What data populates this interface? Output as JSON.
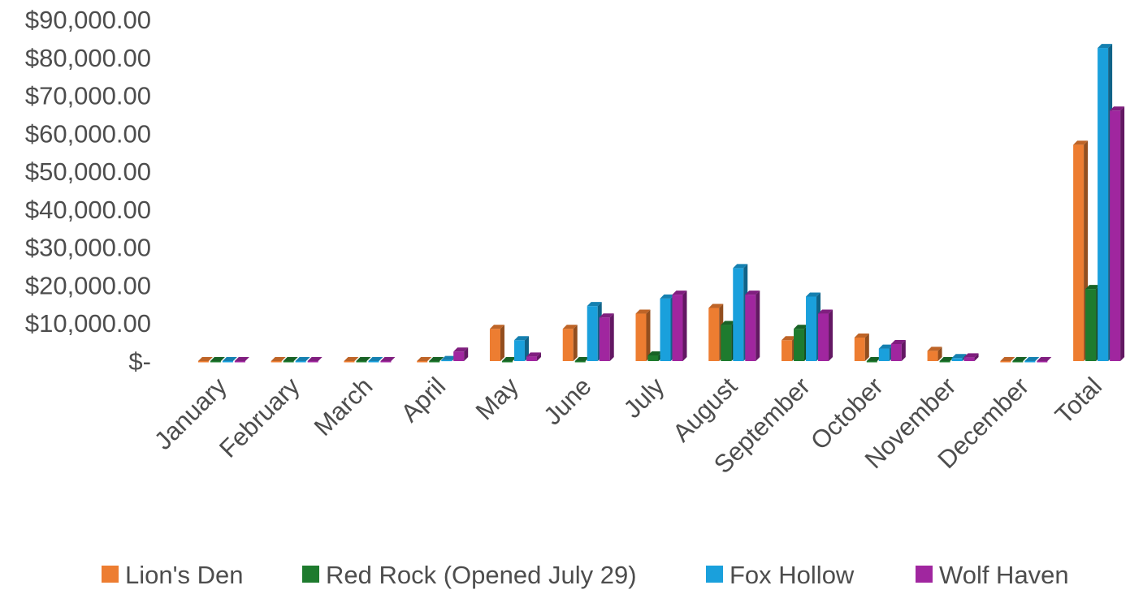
{
  "chart_data": {
    "type": "bar",
    "title": "",
    "xlabel": "",
    "ylabel": "",
    "ylim": [
      0,
      90000
    ],
    "yticks": [
      0,
      10000,
      20000,
      30000,
      40000,
      50000,
      60000,
      70000,
      80000,
      90000
    ],
    "ytick_labels": [
      "$-",
      "$10,000.00",
      "$20,000.00",
      "$30,000.00",
      "$40,000.00",
      "$50,000.00",
      "$60,000.00",
      "$70,000.00",
      "$80,000.00",
      "$90,000.00"
    ],
    "categories": [
      "January",
      "February",
      "March",
      "April",
      "May",
      "June",
      "July",
      "August",
      "September",
      "October",
      "November",
      "December",
      "Total"
    ],
    "grid": false,
    "legend_position": "bottom",
    "style": "3d-clustered-column",
    "series": [
      {
        "name": "Lion's Den",
        "color": "#ED7D31",
        "values": [
          0,
          0,
          0,
          0,
          8500,
          8500,
          12500,
          14000,
          5500,
          6200,
          2700,
          0,
          57000
        ]
      },
      {
        "name": "Red Rock (Opened July 29)",
        "color": "#1E7B2E",
        "values": [
          0,
          0,
          0,
          0,
          0,
          0,
          1500,
          9500,
          8500,
          0,
          0,
          0,
          19000
        ]
      },
      {
        "name": "Fox Hollow",
        "color": "#1AA0DC",
        "values": [
          0,
          0,
          0,
          300,
          5500,
          14500,
          16500,
          24500,
          17000,
          3300,
          800,
          0,
          82500
        ]
      },
      {
        "name": "Wolf Haven",
        "color": "#A0269F",
        "values": [
          0,
          0,
          0,
          2500,
          1200,
          11500,
          17500,
          17500,
          12500,
          4500,
          1000,
          0,
          66000
        ]
      }
    ]
  }
}
